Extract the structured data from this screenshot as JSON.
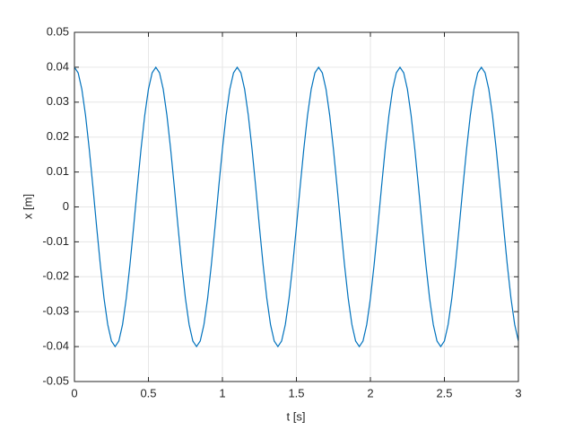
{
  "chart_data": {
    "type": "line",
    "x_label": "t [s]",
    "y_label": "x [m]",
    "x": [
      0,
      0.025,
      0.05,
      0.075,
      0.1,
      0.125,
      0.15,
      0.175,
      0.2,
      0.225,
      0.25,
      0.275,
      0.3,
      0.325,
      0.35,
      0.375,
      0.4,
      0.425,
      0.45,
      0.475,
      0.5,
      0.525,
      0.55,
      0.575,
      0.6,
      0.625,
      0.65,
      0.675,
      0.7,
      0.725,
      0.75,
      0.775,
      0.8,
      0.825,
      0.85,
      0.875,
      0.9,
      0.925,
      0.95,
      0.975,
      1,
      1.025,
      1.05,
      1.075,
      1.1,
      1.125,
      1.15,
      1.175,
      1.2,
      1.225,
      1.25,
      1.275,
      1.3,
      1.325,
      1.35,
      1.375,
      1.4,
      1.425,
      1.45,
      1.475,
      1.5,
      1.525,
      1.55,
      1.575,
      1.6,
      1.625,
      1.65,
      1.675,
      1.7,
      1.725,
      1.75,
      1.775,
      1.8,
      1.825,
      1.85,
      1.875,
      1.9,
      1.925,
      1.95,
      1.975,
      2,
      2.025,
      2.05,
      2.075,
      2.1,
      2.125,
      2.15,
      2.175,
      2.2,
      2.225,
      2.25,
      2.275,
      2.3,
      2.325,
      2.35,
      2.375,
      2.4,
      2.425,
      2.45,
      2.475,
      2.5,
      2.525,
      2.55,
      2.575,
      2.6,
      2.625,
      2.65,
      2.675,
      2.7,
      2.725,
      2.75,
      2.775,
      2.8,
      2.825,
      2.85,
      2.875,
      2.9,
      2.925,
      2.95,
      2.975,
      3
    ],
    "series": [
      {
        "color": "#0072bd",
        "values": [
          0.04,
          0.0384,
          0.0337,
          0.0262,
          0.0166,
          0.0057,
          -0.0057,
          -0.0166,
          -0.0262,
          -0.0337,
          -0.0384,
          -0.04,
          -0.0384,
          -0.0337,
          -0.0262,
          -0.0166,
          -0.0057,
          0.0057,
          0.0166,
          0.0262,
          0.0337,
          0.0384,
          0.04,
          0.0384,
          0.0337,
          0.0262,
          0.0166,
          0.0057,
          -0.0057,
          -0.0166,
          -0.0262,
          -0.0337,
          -0.0384,
          -0.04,
          -0.0384,
          -0.0337,
          -0.0262,
          -0.0166,
          -0.0057,
          0.0057,
          0.0166,
          0.0262,
          0.0337,
          0.0384,
          0.04,
          0.0384,
          0.0337,
          0.0262,
          0.0166,
          0.0057,
          -0.0057,
          -0.0166,
          -0.0262,
          -0.0337,
          -0.0384,
          -0.04,
          -0.0384,
          -0.0337,
          -0.0262,
          -0.0166,
          -0.0057,
          0.0057,
          0.0166,
          0.0262,
          0.0337,
          0.0384,
          0.04,
          0.0384,
          0.0337,
          0.0262,
          0.0166,
          0.0057,
          -0.0057,
          -0.0166,
          -0.0262,
          -0.0337,
          -0.0384,
          -0.04,
          -0.0384,
          -0.0337,
          -0.0262,
          -0.0166,
          -0.0057,
          0.0057,
          0.0166,
          0.0262,
          0.0337,
          0.0384,
          0.04,
          0.0384,
          0.0337,
          0.0262,
          0.0166,
          0.0057,
          -0.0057,
          -0.0166,
          -0.0262,
          -0.0337,
          -0.0384,
          -0.04,
          -0.0384,
          -0.0337,
          -0.0262,
          -0.0166,
          -0.0057,
          0.0057,
          0.0166,
          0.0262,
          0.0337,
          0.0384,
          0.04,
          0.0384,
          0.0337,
          0.0262,
          0.0166,
          0.0057,
          -0.0057,
          -0.0166,
          -0.0262,
          -0.0337,
          -0.0384
        ]
      }
    ],
    "xlim": [
      0,
      3
    ],
    "xticks": [
      0,
      0.5,
      1,
      1.5,
      2,
      2.5,
      3
    ],
    "ylim": [
      -0.05,
      0.05
    ],
    "yticks": [
      -0.05,
      -0.04,
      -0.03,
      -0.02,
      -0.01,
      0,
      0.01,
      0.02,
      0.03,
      0.04,
      0.05
    ],
    "grid": true
  }
}
